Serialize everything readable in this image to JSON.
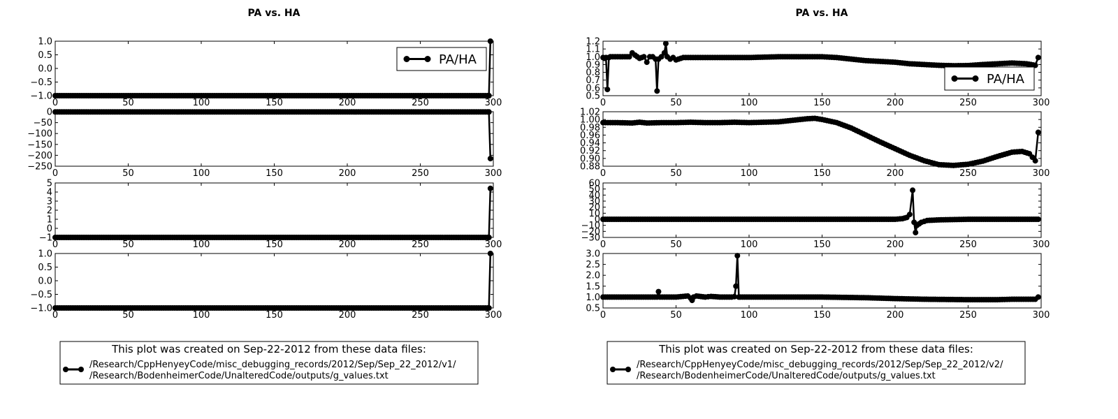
{
  "titles": [
    "PA vs. HA",
    "PA vs. HA"
  ],
  "legend_label": "PA/HA",
  "footnotes": [
    {
      "header": "This plot was created on Sep-22-2012 from these data files:",
      "line1": "/Research/CppHenyeyCode/misc_debugging_records/2012/Sep/Sep_22_2012/v1/",
      "line2": "/Research/BodenheimerCode/UnalteredCode/outputs/g_values.txt"
    },
    {
      "header": "This plot was created on Sep-22-2012 from these data files:",
      "line1": "/Research/CppHenyeyCode/misc_debugging_records/2012/Sep/Sep_22_2012/v2/",
      "line2": "/Research/BodenheimerCode/UnalteredCode/outputs/g_values.txt"
    }
  ],
  "colors": {
    "line": "#000000",
    "background": "#ffffff"
  },
  "chart_data": [
    {
      "type": "line",
      "column": "left",
      "panel": 1,
      "title": "PA vs. HA",
      "legend": "PA/HA",
      "legend_position": "upper-right",
      "xlim": [
        0,
        300
      ],
      "ylim": [
        -1.0,
        1.0
      ],
      "xticks": [
        0,
        50,
        100,
        150,
        200,
        250,
        300
      ],
      "yticks": [
        1.0,
        0.5,
        0.0,
        -0.5,
        -1.0
      ],
      "ytick_decimals": 1,
      "series": [
        {
          "x": [
            0,
            50,
            100,
            150,
            200,
            250,
            296,
            297,
            298
          ],
          "y": [
            -1,
            -1,
            -1,
            -1,
            -1,
            -1,
            -1,
            -1,
            1
          ]
        }
      ]
    },
    {
      "type": "line",
      "column": "left",
      "panel": 2,
      "xlim": [
        0,
        300
      ],
      "ylim": [
        -250,
        0
      ],
      "xticks": [
        0,
        50,
        100,
        150,
        200,
        250,
        300
      ],
      "yticks": [
        0,
        -50,
        -100,
        -150,
        -200,
        -250
      ],
      "ytick_decimals": 0,
      "series": [
        {
          "x": [
            0,
            50,
            100,
            150,
            200,
            250,
            296,
            297,
            298
          ],
          "y": [
            -1,
            -1,
            -1,
            -1,
            -1,
            -1,
            -1,
            -1,
            -215
          ]
        }
      ]
    },
    {
      "type": "line",
      "column": "left",
      "panel": 3,
      "xlim": [
        0,
        300
      ],
      "ylim": [
        -1,
        5
      ],
      "xticks": [
        0,
        50,
        100,
        150,
        200,
        250,
        300
      ],
      "yticks": [
        5,
        4,
        3,
        2,
        1,
        0,
        -1
      ],
      "ytick_decimals": 0,
      "series": [
        {
          "x": [
            0,
            50,
            100,
            150,
            200,
            250,
            296,
            297,
            298
          ],
          "y": [
            -1,
            -1,
            -1,
            -1,
            -1,
            -1,
            -1,
            -1,
            4.4
          ]
        }
      ]
    },
    {
      "type": "line",
      "column": "left",
      "panel": 4,
      "xlim": [
        0,
        300
      ],
      "ylim": [
        -1.0,
        1.0
      ],
      "xticks": [
        0,
        50,
        100,
        150,
        200,
        250,
        300
      ],
      "yticks": [
        1.0,
        0.5,
        0.0,
        -0.5,
        -1.0
      ],
      "ytick_decimals": 1,
      "series": [
        {
          "x": [
            0,
            50,
            100,
            150,
            200,
            250,
            296,
            297,
            298
          ],
          "y": [
            -1,
            -1,
            -1,
            -1,
            -1,
            -1,
            -1,
            -1,
            1
          ]
        }
      ]
    },
    {
      "type": "line",
      "column": "right",
      "panel": 1,
      "title": "PA vs. HA",
      "legend": "PA/HA",
      "legend_position": "lower-right",
      "xlim": [
        0,
        300
      ],
      "ylim": [
        0.5,
        1.2
      ],
      "xticks": [
        0,
        50,
        100,
        150,
        200,
        250,
        300
      ],
      "yticks": [
        1.2,
        1.1,
        1.0,
        0.9,
        0.8,
        0.7,
        0.6,
        0.5
      ],
      "ytick_decimals": 1,
      "series": [
        {
          "x": [
            0,
            1,
            2,
            3,
            4,
            5,
            10,
            15,
            18,
            20,
            22,
            25,
            28,
            30,
            32,
            34,
            36,
            37,
            38,
            40,
            42,
            43,
            44,
            46,
            48,
            50,
            55,
            60,
            70,
            80,
            100,
            120,
            140,
            150,
            160,
            170,
            180,
            190,
            200,
            210,
            220,
            230,
            240,
            250,
            260,
            270,
            280,
            290,
            296,
            298
          ],
          "y": [
            0.99,
            0.98,
            0.99,
            0.58,
            0.99,
            1.0,
            1.0,
            1.0,
            1.0,
            1.05,
            1.02,
            0.98,
            1.0,
            0.93,
            1.0,
            1.0,
            0.97,
            0.56,
            0.97,
            1.0,
            1.05,
            1.17,
            1.0,
            0.97,
            0.99,
            0.96,
            0.99,
            0.99,
            0.99,
            0.99,
            0.99,
            1.0,
            1.0,
            1.0,
            0.99,
            0.97,
            0.95,
            0.94,
            0.93,
            0.91,
            0.9,
            0.89,
            0.885,
            0.887,
            0.9,
            0.91,
            0.92,
            0.91,
            0.89,
            0.99
          ]
        }
      ]
    },
    {
      "type": "line",
      "column": "right",
      "panel": 2,
      "xlim": [
        0,
        300
      ],
      "ylim": [
        0.88,
        1.02
      ],
      "xticks": [
        0,
        50,
        100,
        150,
        200,
        250,
        300
      ],
      "yticks": [
        1.02,
        1.0,
        0.98,
        0.96,
        0.94,
        0.92,
        0.9,
        0.88
      ],
      "ytick_decimals": 2,
      "series": [
        {
          "x": [
            0,
            10,
            20,
            25,
            30,
            40,
            50,
            60,
            70,
            80,
            90,
            100,
            110,
            120,
            130,
            140,
            145,
            150,
            160,
            170,
            180,
            190,
            200,
            210,
            220,
            230,
            240,
            250,
            260,
            270,
            280,
            287,
            292,
            296,
            298
          ],
          "y": [
            0.992,
            0.992,
            0.991,
            0.993,
            0.991,
            0.992,
            0.992,
            0.993,
            0.992,
            0.992,
            0.993,
            0.992,
            0.993,
            0.994,
            0.998,
            1.002,
            1.003,
            1.0,
            0.992,
            0.978,
            0.96,
            0.942,
            0.925,
            0.908,
            0.894,
            0.884,
            0.882,
            0.885,
            0.893,
            0.905,
            0.916,
            0.918,
            0.912,
            0.894,
            0.967
          ]
        }
      ]
    },
    {
      "type": "line",
      "column": "right",
      "panel": 3,
      "xlim": [
        0,
        300
      ],
      "ylim": [
        -30,
        60
      ],
      "xticks": [
        0,
        50,
        100,
        150,
        200,
        250,
        300
      ],
      "yticks": [
        60,
        50,
        40,
        30,
        20,
        10,
        0,
        -10,
        -20,
        -30
      ],
      "ytick_decimals": 0,
      "series": [
        {
          "x": [
            0,
            50,
            100,
            150,
            200,
            205,
            208,
            210,
            212,
            213,
            214,
            215,
            218,
            222,
            230,
            250,
            298
          ],
          "y": [
            0,
            0,
            0,
            0,
            0,
            1,
            3,
            8,
            48,
            -5,
            -22,
            -10,
            -5,
            -2,
            -1,
            0,
            0
          ]
        }
      ]
    },
    {
      "type": "line",
      "column": "right",
      "panel": 4,
      "xlim": [
        0,
        300
      ],
      "ylim": [
        0.5,
        3.0
      ],
      "xticks": [
        0,
        50,
        100,
        150,
        200,
        250,
        300
      ],
      "yticks": [
        3.0,
        2.5,
        2.0,
        1.5,
        1.0,
        0.5
      ],
      "ytick_decimals": 1,
      "series": [
        {
          "x": [
            0,
            20,
            37,
            38,
            39,
            50,
            58,
            60,
            61,
            62,
            64,
            70,
            74,
            80,
            88,
            90,
            91,
            92,
            93,
            94,
            100,
            150,
            180,
            200,
            220,
            250,
            270,
            280,
            296,
            298
          ],
          "y": [
            1.0,
            1.0,
            1.0,
            1.25,
            1.0,
            1.0,
            1.05,
            0.95,
            0.85,
            1.0,
            1.05,
            1.0,
            1.03,
            1.0,
            1.0,
            1.02,
            1.5,
            2.9,
            1.0,
            1.0,
            1.0,
            1.0,
            0.97,
            0.93,
            0.9,
            0.88,
            0.88,
            0.9,
            0.9,
            1.0
          ]
        }
      ]
    }
  ]
}
